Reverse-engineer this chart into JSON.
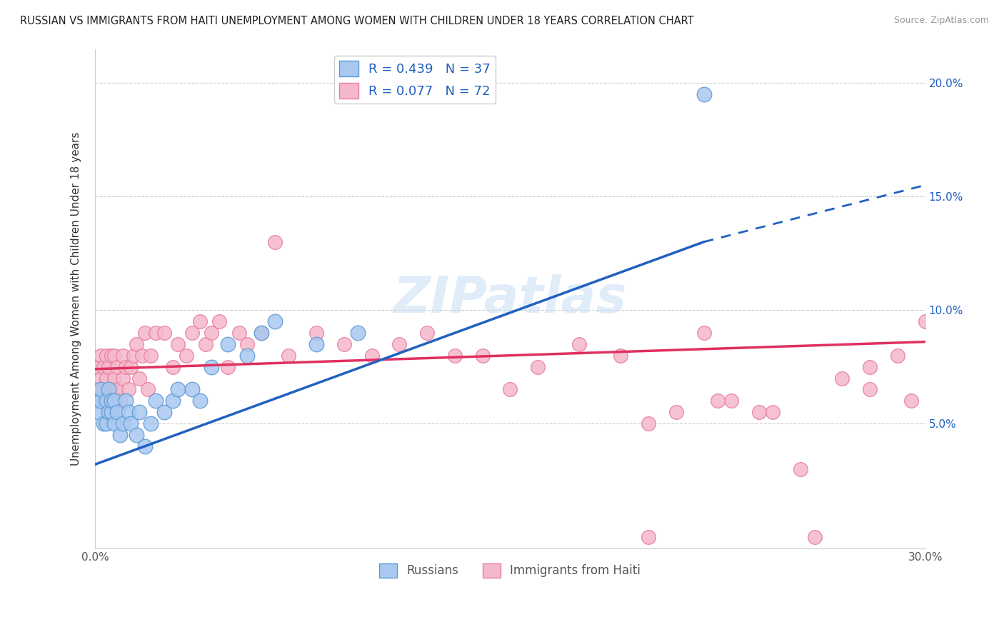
{
  "title": "RUSSIAN VS IMMIGRANTS FROM HAITI UNEMPLOYMENT AMONG WOMEN WITH CHILDREN UNDER 18 YEARS CORRELATION CHART",
  "source": "Source: ZipAtlas.com",
  "ylabel": "Unemployment Among Women with Children Under 18 years",
  "xlim": [
    0.0,
    0.3
  ],
  "ylim": [
    -0.005,
    0.215
  ],
  "xticks": [
    0.0,
    0.05,
    0.1,
    0.15,
    0.2,
    0.25,
    0.3
  ],
  "yticks": [
    0.0,
    0.05,
    0.1,
    0.15,
    0.2
  ],
  "right_ytick_labels": [
    "5.0%",
    "10.0%",
    "15.0%",
    "20.0%"
  ],
  "russian_color": "#a8c8f0",
  "haiti_color": "#f5b8cb",
  "russian_edge": "#5b9bd5",
  "haiti_edge": "#e87ca0",
  "trendline_russian_color": "#2060c0",
  "trendline_haiti_color": "#e03060",
  "watermark": "ZIPatlas",
  "russians_x": [
    0.001,
    0.001,
    0.002,
    0.002,
    0.003,
    0.004,
    0.004,
    0.005,
    0.005,
    0.006,
    0.006,
    0.007,
    0.007,
    0.008,
    0.009,
    0.01,
    0.011,
    0.012,
    0.013,
    0.015,
    0.016,
    0.018,
    0.02,
    0.022,
    0.025,
    0.028,
    0.03,
    0.035,
    0.038,
    0.042,
    0.048,
    0.055,
    0.06,
    0.065,
    0.08,
    0.095,
    0.22
  ],
  "russians_y": [
    0.06,
    0.055,
    0.06,
    0.065,
    0.05,
    0.05,
    0.06,
    0.055,
    0.065,
    0.055,
    0.06,
    0.05,
    0.06,
    0.055,
    0.045,
    0.05,
    0.06,
    0.055,
    0.05,
    0.045,
    0.055,
    0.04,
    0.05,
    0.06,
    0.055,
    0.06,
    0.065,
    0.065,
    0.06,
    0.075,
    0.085,
    0.08,
    0.09,
    0.095,
    0.085,
    0.09,
    0.195
  ],
  "haiti_x": [
    0.001,
    0.001,
    0.002,
    0.002,
    0.003,
    0.003,
    0.004,
    0.004,
    0.005,
    0.005,
    0.006,
    0.006,
    0.007,
    0.007,
    0.008,
    0.008,
    0.009,
    0.01,
    0.01,
    0.011,
    0.012,
    0.013,
    0.014,
    0.015,
    0.016,
    0.017,
    0.018,
    0.019,
    0.02,
    0.022,
    0.025,
    0.028,
    0.03,
    0.033,
    0.035,
    0.038,
    0.04,
    0.042,
    0.045,
    0.048,
    0.052,
    0.055,
    0.06,
    0.065,
    0.07,
    0.08,
    0.09,
    0.1,
    0.11,
    0.12,
    0.13,
    0.14,
    0.15,
    0.16,
    0.175,
    0.19,
    0.2,
    0.21,
    0.22,
    0.23,
    0.245,
    0.255,
    0.27,
    0.28,
    0.29,
    0.295,
    0.3,
    0.28,
    0.26,
    0.24,
    0.225,
    0.2
  ],
  "haiti_y": [
    0.075,
    0.065,
    0.07,
    0.08,
    0.065,
    0.075,
    0.07,
    0.08,
    0.06,
    0.075,
    0.08,
    0.065,
    0.07,
    0.08,
    0.065,
    0.075,
    0.06,
    0.07,
    0.08,
    0.075,
    0.065,
    0.075,
    0.08,
    0.085,
    0.07,
    0.08,
    0.09,
    0.065,
    0.08,
    0.09,
    0.09,
    0.075,
    0.085,
    0.08,
    0.09,
    0.095,
    0.085,
    0.09,
    0.095,
    0.075,
    0.09,
    0.085,
    0.09,
    0.13,
    0.08,
    0.09,
    0.085,
    0.08,
    0.085,
    0.09,
    0.08,
    0.08,
    0.065,
    0.075,
    0.085,
    0.08,
    0.05,
    0.055,
    0.09,
    0.06,
    0.055,
    0.03,
    0.07,
    0.065,
    0.08,
    0.06,
    0.095,
    0.075,
    0.0,
    0.055,
    0.06,
    0.0
  ],
  "russian_trendline_x0": 0.0,
  "russian_trendline_y0": 0.032,
  "russian_trendline_x1": 0.22,
  "russian_trendline_y1": 0.13,
  "russian_trendline_xdash": 0.3,
  "russian_trendline_ydash": 0.155,
  "haiti_trendline_x0": 0.0,
  "haiti_trendline_y0": 0.074,
  "haiti_trendline_x1": 0.3,
  "haiti_trendline_y1": 0.086
}
